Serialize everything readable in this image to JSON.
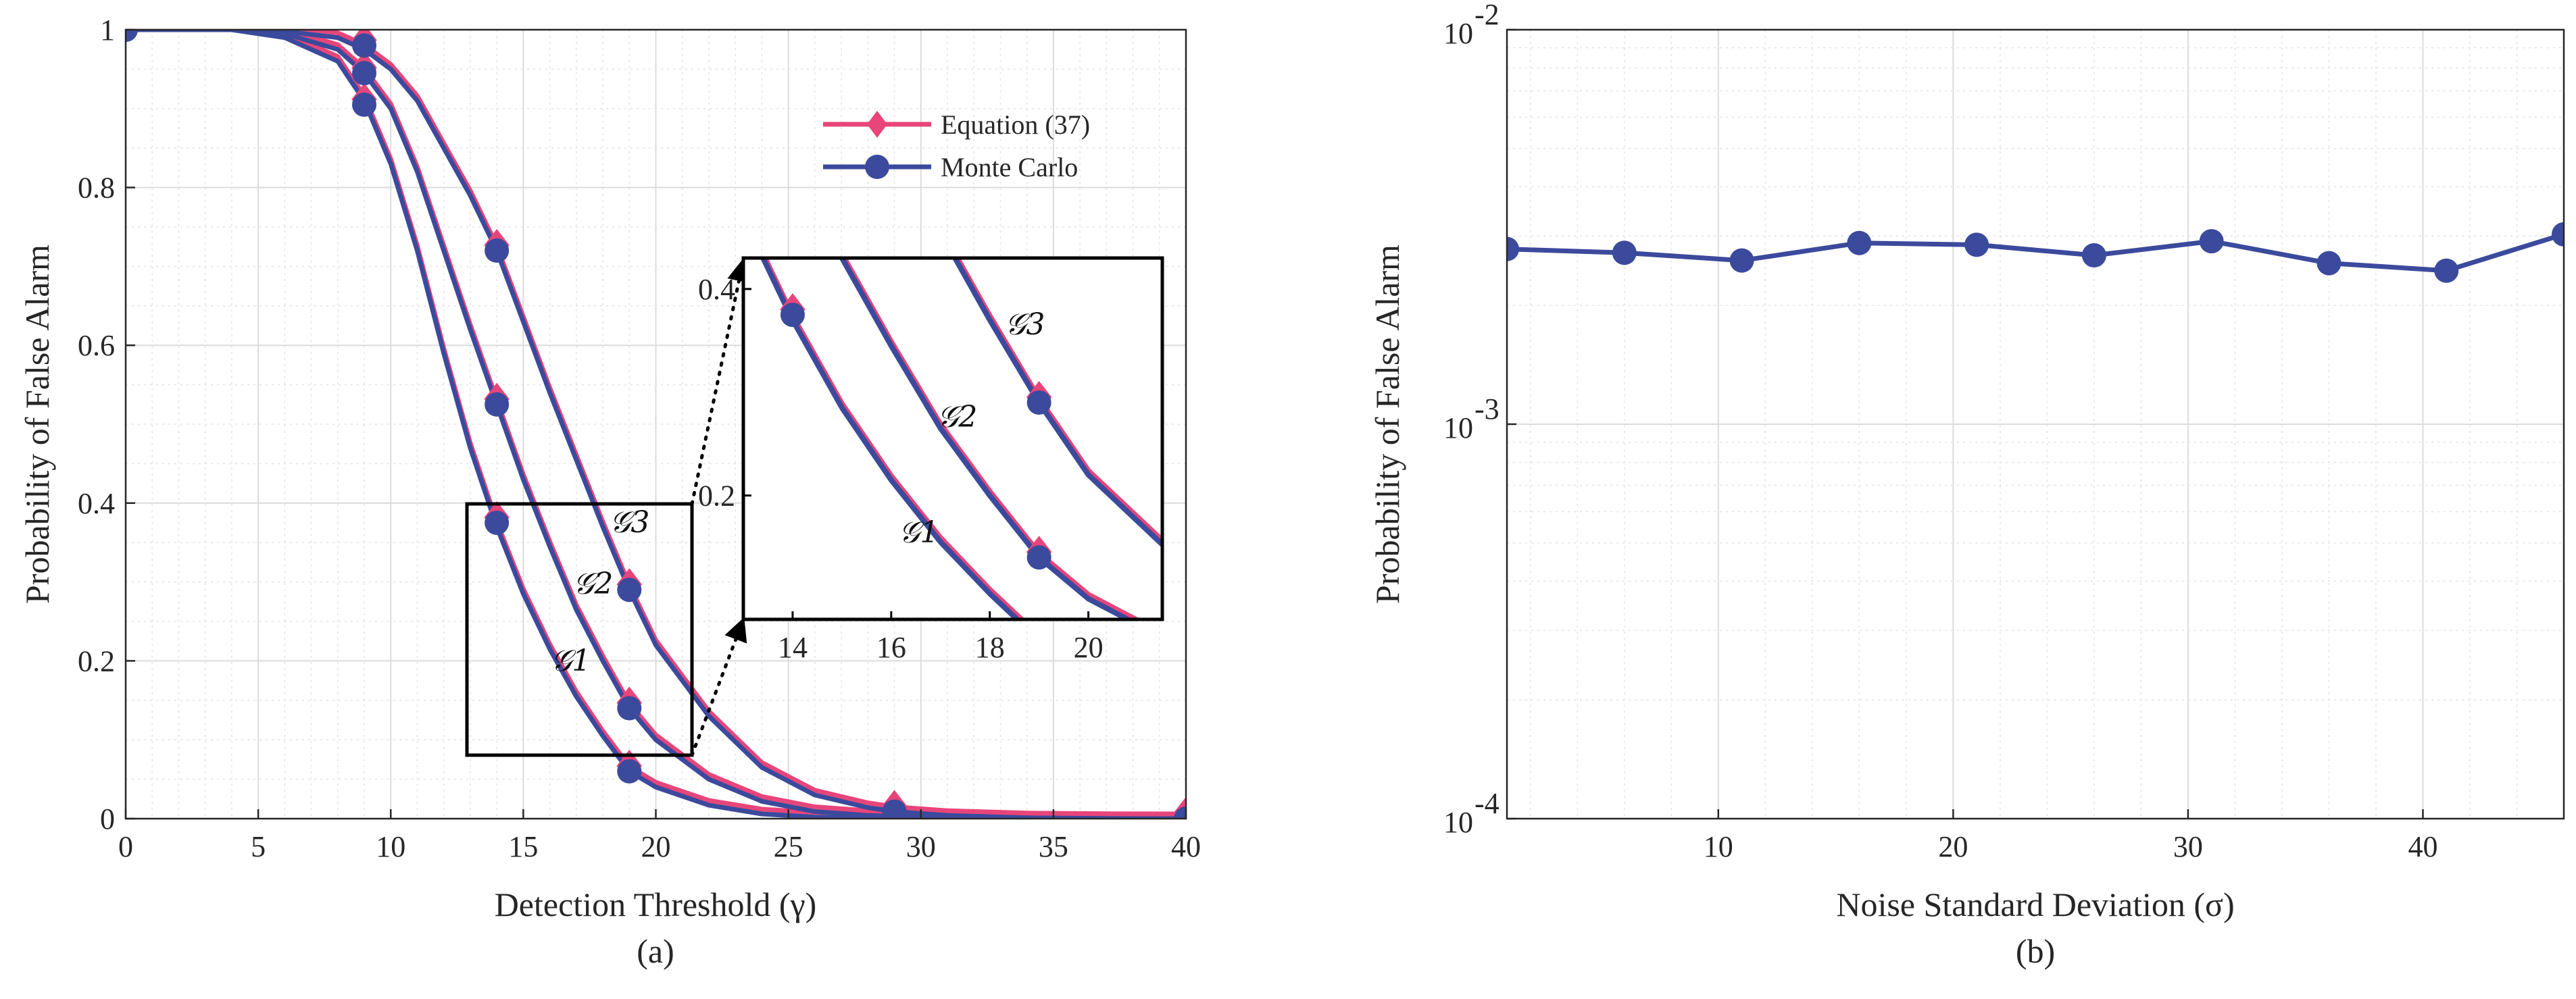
{
  "chart_data": [
    {
      "type": "line",
      "panel_label": "(a)",
      "xlabel": "Detection Threshold (γ)",
      "ylabel": "Probability of False Alarm",
      "xlim": [
        0,
        40
      ],
      "ylim": [
        0,
        1
      ],
      "xticks": [
        "0",
        "5",
        "10",
        "15",
        "20",
        "25",
        "30",
        "35",
        "40"
      ],
      "yticks": [
        "0",
        "0.2",
        "0.4",
        "0.6",
        "0.8",
        "1"
      ],
      "grid": true,
      "legend": {
        "position": "top-right",
        "entries": [
          "Equation (37)",
          "Monte Carlo"
        ]
      },
      "colors": {
        "equation": "#e8457a",
        "monte_carlo": "#3b4a9c"
      },
      "curve_labels": [
        "𝒢1",
        "𝒢2",
        "𝒢3"
      ],
      "series": [
        {
          "name": "G1",
          "x": [
            0,
            4,
            6,
            8,
            9,
            10,
            11,
            12,
            13,
            14,
            15,
            16,
            17,
            18,
            19,
            20,
            22,
            24,
            26,
            28,
            29,
            31,
            34,
            37,
            40
          ],
          "y": [
            1.0,
            1.0,
            0.99,
            0.96,
            0.91,
            0.83,
            0.72,
            0.59,
            0.47,
            0.37,
            0.285,
            0.215,
            0.155,
            0.105,
            0.06,
            0.04,
            0.017,
            0.006,
            0.002,
            0.0007,
            0.0003,
            0.0001,
            0.0,
            0.0,
            0.0
          ],
          "markers_x": [
            0,
            9,
            14,
            19,
            29,
            40
          ],
          "markers_y": [
            1.0,
            0.905,
            0.375,
            0.06,
            0.0,
            0.0
          ]
        },
        {
          "name": "G2",
          "x": [
            0,
            4,
            6,
            8,
            9,
            10,
            11,
            12,
            13,
            14,
            15,
            16,
            17,
            18,
            19,
            20,
            22,
            24,
            26,
            28,
            29,
            31,
            34,
            37,
            40
          ],
          "y": [
            1.0,
            1.0,
            0.995,
            0.975,
            0.945,
            0.9,
            0.82,
            0.72,
            0.62,
            0.525,
            0.43,
            0.345,
            0.265,
            0.2,
            0.14,
            0.1,
            0.05,
            0.022,
            0.009,
            0.004,
            0.003,
            0.001,
            0.0003,
            0.0,
            0.0
          ],
          "markers_x": [
            0,
            9,
            14,
            19,
            29,
            40
          ],
          "markers_y": [
            1.0,
            0.945,
            0.525,
            0.14,
            0.003,
            0.0
          ]
        },
        {
          "name": "G3",
          "x": [
            0,
            4,
            6,
            8,
            9,
            10,
            11,
            12,
            13,
            14,
            15,
            16,
            17,
            18,
            19,
            20,
            22,
            24,
            26,
            28,
            29,
            31,
            34,
            37,
            40
          ],
          "y": [
            1.0,
            1.0,
            0.998,
            0.99,
            0.975,
            0.95,
            0.91,
            0.85,
            0.79,
            0.72,
            0.63,
            0.54,
            0.455,
            0.37,
            0.29,
            0.22,
            0.13,
            0.065,
            0.03,
            0.014,
            0.009,
            0.004,
            0.001,
            0.0002,
            0.0
          ],
          "markers_x": [
            0,
            9,
            14,
            19,
            29,
            40
          ],
          "markers_y": [
            1.0,
            0.98,
            0.72,
            0.29,
            0.009,
            0.0
          ]
        }
      ],
      "inset": {
        "xlim": [
          13,
          21.5
        ],
        "ylim": [
          0.08,
          0.43
        ],
        "xticks": [
          "14",
          "16",
          "18",
          "20"
        ],
        "yticks": [
          "0.2",
          "0.4"
        ]
      }
    },
    {
      "type": "line",
      "panel_label": "(b)",
      "xlabel": "Noise Standard Deviation  (σ)",
      "ylabel": "Probability of False Alarm",
      "yscale": "log",
      "xlim": [
        1,
        46
      ],
      "ylim": [
        0.0001,
        0.01
      ],
      "xticks": [
        "10",
        "20",
        "30",
        "40"
      ],
      "yticks": [
        {
          "base": "10",
          "exp": "-4"
        },
        {
          "base": "10",
          "exp": "-3"
        },
        {
          "base": "10",
          "exp": "-2"
        }
      ],
      "grid": true,
      "series": [
        {
          "name": "Monte Carlo",
          "x": [
            1,
            6,
            11,
            16,
            21,
            26,
            31,
            36,
            41,
            46
          ],
          "y": [
            0.00278,
            0.00272,
            0.0026,
            0.00288,
            0.00285,
            0.00268,
            0.00291,
            0.00256,
            0.00245,
            0.00303
          ]
        }
      ]
    }
  ]
}
